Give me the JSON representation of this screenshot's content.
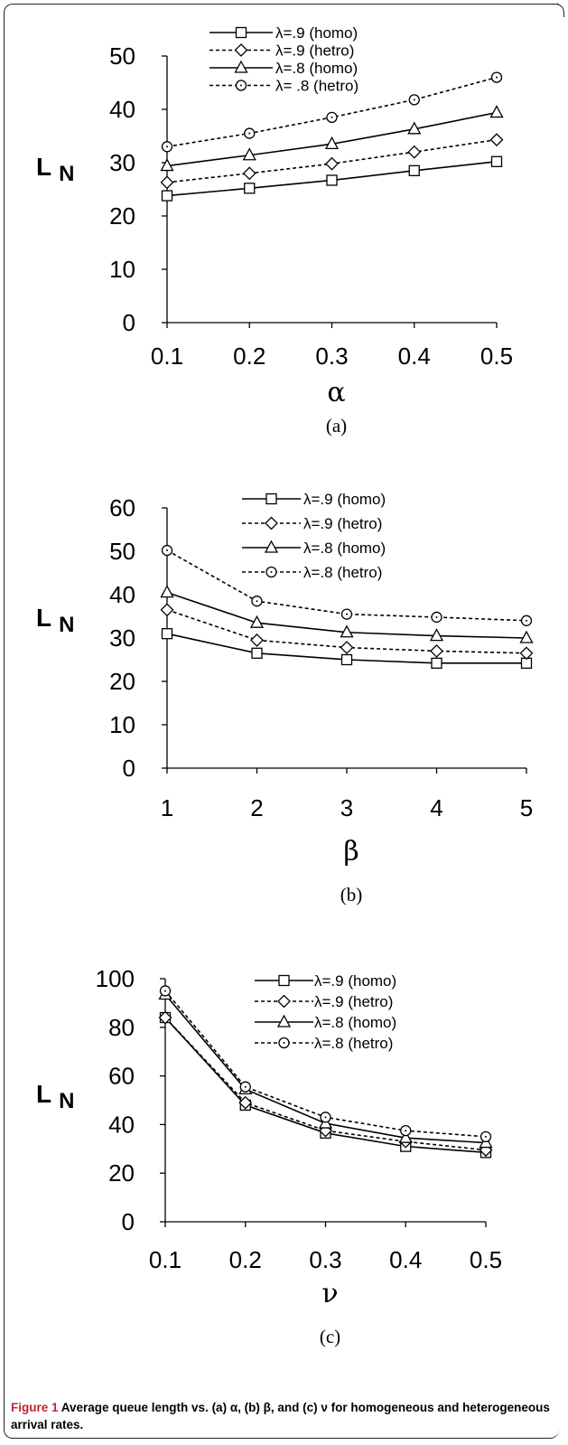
{
  "chart_data": [
    {
      "type": "line",
      "panel_label": "(a)",
      "xlabel": "α",
      "ylabel_main": "L",
      "ylabel_sub": "N",
      "x": [
        0.1,
        0.2,
        0.3,
        0.4,
        0.5
      ],
      "x_tick_labels": [
        "0.1",
        "0.2",
        "0.3",
        "0.4",
        "0.5"
      ],
      "ylim": [
        0,
        50
      ],
      "y_ticks": [
        0,
        10,
        20,
        30,
        40,
        50
      ],
      "legend_position": "top",
      "series": [
        {
          "name": "λ=.9 (homo)",
          "values": [
            23.8,
            25.2,
            26.7,
            28.5,
            30.2
          ],
          "marker": "square",
          "dash": "solid"
        },
        {
          "name": "λ=.9 (hetro)",
          "values": [
            26.3,
            28.0,
            29.8,
            32.0,
            34.3
          ],
          "marker": "diamond",
          "dash": "dashed"
        },
        {
          "name": "λ=.8 (homo)",
          "values": [
            29.4,
            31.4,
            33.5,
            36.3,
            39.4
          ],
          "marker": "triangle",
          "dash": "solid"
        },
        {
          "name": "λ= .8 (hetro)",
          "values": [
            33.0,
            35.5,
            38.5,
            41.8,
            46.0
          ],
          "marker": "circle",
          "dash": "dashed"
        }
      ]
    },
    {
      "type": "line",
      "panel_label": "(b)",
      "xlabel": "β",
      "ylabel_main": "L",
      "ylabel_sub": "N",
      "x": [
        1,
        2,
        3,
        4,
        5
      ],
      "x_tick_labels": [
        "1",
        "2",
        "3",
        "4",
        "5"
      ],
      "ylim": [
        0,
        60
      ],
      "y_ticks": [
        0,
        10,
        20,
        30,
        40,
        50,
        60
      ],
      "legend_position": "top-right",
      "series": [
        {
          "name": "λ=.9  (homo)",
          "values": [
            31.0,
            26.5,
            25.0,
            24.2,
            24.2
          ],
          "marker": "square",
          "dash": "solid"
        },
        {
          "name": "λ=.9 (hetro)",
          "values": [
            36.5,
            29.5,
            27.8,
            27.0,
            26.5
          ],
          "marker": "diamond",
          "dash": "dashed"
        },
        {
          "name": "λ=.8 (homo)",
          "values": [
            40.5,
            33.5,
            31.3,
            30.5,
            30.0
          ],
          "marker": "triangle",
          "dash": "solid"
        },
        {
          "name": "λ=.8 (hetro)",
          "values": [
            50.2,
            38.5,
            35.5,
            34.8,
            34.0
          ],
          "marker": "circle",
          "dash": "dashed"
        }
      ]
    },
    {
      "type": "line",
      "panel_label": "(c)",
      "xlabel": "ν",
      "ylabel_main": "L",
      "ylabel_sub": "N",
      "x": [
        0.1,
        0.2,
        0.3,
        0.4,
        0.5
      ],
      "x_tick_labels": [
        "0.1",
        "0.2",
        "0.3",
        "0.4",
        "0.5"
      ],
      "ylim": [
        0,
        100
      ],
      "y_ticks": [
        0,
        20,
        40,
        60,
        80,
        100
      ],
      "legend_position": "top-right",
      "series": [
        {
          "name": "λ=.9 (homo)",
          "values": [
            84.0,
            48.0,
            36.5,
            31.0,
            28.5
          ],
          "marker": "square",
          "dash": "solid"
        },
        {
          "name": "λ=.9 (hetro)",
          "values": [
            84.0,
            49.0,
            37.5,
            33.0,
            29.5
          ],
          "marker": "diamond",
          "dash": "dashed"
        },
        {
          "name": "λ=.8 (homo)",
          "values": [
            93.5,
            54.5,
            40.5,
            34.5,
            32.5
          ],
          "marker": "triangle",
          "dash": "solid"
        },
        {
          "name": "λ=.8 (hetro)",
          "values": [
            95.0,
            55.5,
            43.0,
            37.5,
            35.0
          ],
          "marker": "circle",
          "dash": "dashed"
        }
      ]
    }
  ],
  "caption": {
    "label": "Figure 1",
    "bold_text": " Average queue length vs. (a) α, (b) β, and (c) ν for homogeneous and heterogeneous arrival rates."
  }
}
